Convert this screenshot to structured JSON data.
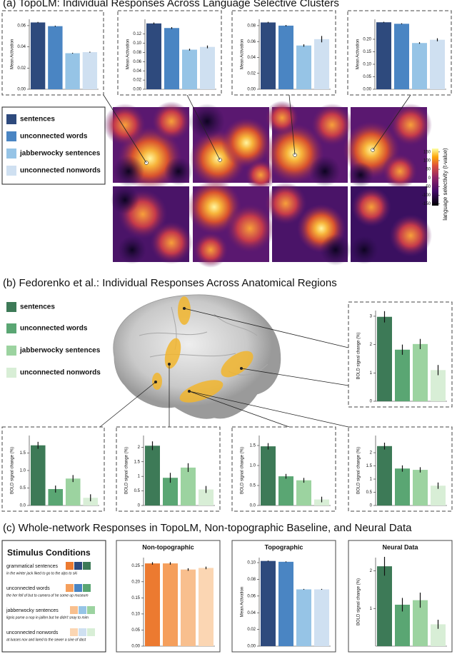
{
  "panels": [
    "(a) TopoLM: Individual Responses Across Language Selective Clusters",
    "(b) Fedorenko et al.: Individual Responses Across Anatomical Regions",
    "(c) Whole-network Responses in TopoLM, Non-topographic Baseline, and Neural Data"
  ],
  "legend_a": [
    "sentences",
    "unconnected words",
    "jabberwocky sentences",
    "unconnected nonwords"
  ],
  "legend_b": [
    "sentences",
    "unconnected words",
    "jabberwocky sentences",
    "unconnected nonwords"
  ],
  "stimulus_conditions": {
    "title": "Stimulus Conditions",
    "items": [
      {
        "label": "grammatical sentences",
        "example": "in the winter jack liked to go to the alps to ski"
      },
      {
        "label": "unconnected words",
        "example": "the her fell of but to camera of he some up museum"
      },
      {
        "label": "jabberwocky sentences",
        "example": "lignis porne a nop in jaifen but he didn't snay to mim"
      },
      {
        "label": "unconnected nonwords",
        "example": "at luases nox and lared to the sewer a sixe of dast"
      }
    ]
  },
  "chart_data": [
    {
      "type": "bar",
      "ylabel": "Mean Activation",
      "values": [
        0.063,
        0.0595,
        0.034,
        0.035
      ],
      "errors": [
        0.0005,
        0.0005,
        0.0004,
        0.0004
      ],
      "colors": [
        "#2e4a7d",
        "#4a85c3",
        "#96c4e6",
        "#cfe0f1"
      ],
      "ylim": [
        0,
        0.066
      ],
      "yticks": [
        {
          "value": 0,
          "label": "0.00"
        },
        0.02,
        0.04,
        0.06
      ]
    },
    {
      "type": "bar",
      "ylabel": "Mean Activation",
      "values": [
        0.143,
        0.133,
        0.086,
        0.092
      ],
      "errors": [
        0.002,
        0.002,
        0.002,
        0.003
      ],
      "colors": [
        "#2e4a7d",
        "#4a85c3",
        "#96c4e6",
        "#cfe0f1"
      ],
      "ylim": [
        0,
        0.152
      ],
      "yticks": [
        {
          "value": 0,
          "label": "0.00"
        },
        0.02,
        0.04,
        0.06,
        0.08,
        {
          "value": 0.1,
          "label": "0.10"
        },
        0.12
      ]
    },
    {
      "type": "bar",
      "ylabel": "Mean Activation",
      "values": [
        0.084,
        0.08,
        0.055,
        0.063
      ],
      "errors": [
        0.0008,
        0.0008,
        0.0015,
        0.004
      ],
      "colors": [
        "#2e4a7d",
        "#4a85c3",
        "#96c4e6",
        "#cfe0f1"
      ],
      "ylim": [
        0,
        0.088
      ],
      "yticks": [
        {
          "value": 0,
          "label": "0.00"
        },
        0.02,
        0.04,
        0.06,
        0.08
      ]
    },
    {
      "type": "bar",
      "ylabel": "Mean Activation",
      "values": [
        0.268,
        0.262,
        0.185,
        0.198
      ],
      "errors": [
        0.002,
        0.002,
        0.003,
        0.006
      ],
      "colors": [
        "#2e4a7d",
        "#4a85c3",
        "#96c4e6",
        "#cfe0f1"
      ],
      "ylim": [
        0,
        0.28
      ],
      "yticks": [
        {
          "value": 0,
          "label": "0.00"
        },
        0.05,
        {
          "value": 0.1,
          "label": "0.10"
        },
        0.15,
        {
          "value": 0.2,
          "label": "0.20"
        }
      ]
    },
    {
      "type": "colorbar",
      "label": "language selectivity (t-value)",
      "ylim": [
        -160,
        170
      ],
      "yticks": [
        150,
        100,
        50,
        0,
        -50,
        -100,
        -150
      ]
    },
    {
      "type": "bar",
      "ylabel": "BOLD signal change (%)",
      "values": [
        2.98,
        1.82,
        2.02,
        1.1
      ],
      "errors": [
        0.2,
        0.18,
        0.18,
        0.18
      ],
      "colors": [
        "#3d7a57",
        "#5aa673",
        "#9cd3a0",
        "#d8eed6"
      ],
      "ylim": [
        0,
        3.2
      ],
      "yticks": [
        0,
        1,
        2,
        3
      ]
    },
    {
      "type": "bar",
      "ylabel": "BOLD signal change (%)",
      "values": [
        1.72,
        0.47,
        0.77,
        0.22
      ],
      "errors": [
        0.1,
        0.1,
        0.1,
        0.1
      ],
      "colors": [
        "#3d7a57",
        "#5aa673",
        "#9cd3a0",
        "#d8eed6"
      ],
      "ylim": [
        0,
        2.0
      ],
      "yticks": [
        {
          "value": 0,
          "label": "0.0"
        },
        0.5,
        {
          "value": 1,
          "label": "1.0"
        },
        1.5
      ]
    },
    {
      "type": "bar",
      "ylabel": "BOLD signal change (%)",
      "values": [
        2.05,
        0.95,
        1.3,
        0.55
      ],
      "errors": [
        0.15,
        0.17,
        0.15,
        0.12
      ],
      "colors": [
        "#3d7a57",
        "#5aa673",
        "#9cd3a0",
        "#d8eed6"
      ],
      "ylim": [
        0,
        2.4
      ],
      "yticks": [
        0,
        0.5,
        1,
        1.5,
        2
      ]
    },
    {
      "type": "bar",
      "ylabel": "BOLD signal change (%)",
      "values": [
        1.48,
        0.73,
        0.63,
        0.15
      ],
      "errors": [
        0.08,
        0.06,
        0.06,
        0.07
      ],
      "colors": [
        "#3d7a57",
        "#5aa673",
        "#9cd3a0",
        "#d8eed6"
      ],
      "ylim": [
        0,
        1.75
      ],
      "yticks": [
        {
          "value": 0,
          "label": "0.0"
        },
        0.5,
        {
          "value": 1,
          "label": "1.0"
        },
        1.5
      ]
    },
    {
      "type": "bar",
      "ylabel": "BOLD signal change (%)",
      "values": [
        2.25,
        1.4,
        1.35,
        0.75
      ],
      "errors": [
        0.13,
        0.12,
        0.1,
        0.12
      ],
      "colors": [
        "#3d7a57",
        "#5aa673",
        "#9cd3a0",
        "#d8eed6"
      ],
      "ylim": [
        0,
        2.65
      ],
      "yticks": [
        0,
        0.5,
        1,
        1.5,
        2
      ]
    },
    {
      "type": "bar",
      "title": "Non-topographic",
      "title_color": "#ec7a30",
      "values": [
        0.257,
        0.257,
        0.238,
        0.243
      ],
      "errors": [
        0.004,
        0.004,
        0.004,
        0.004
      ],
      "colors": [
        "#ec7a30",
        "#f59f5c",
        "#f8bf8e",
        "#fbd6b3"
      ],
      "ylim": [
        0,
        0.275
      ],
      "yticks": [
        {
          "value": 0,
          "label": "0.00"
        },
        0.05,
        {
          "value": 0.1,
          "label": "0.10"
        },
        0.15,
        {
          "value": 0.2,
          "label": "0.20"
        },
        0.25
      ]
    },
    {
      "type": "bar",
      "title": "Topographic",
      "title_color": "#2e4a7d",
      "ylabel": "Mean Activation",
      "values": [
        0.102,
        0.101,
        0.068,
        0.068
      ],
      "errors": [
        0.0005,
        0.0005,
        0.0005,
        0.0005
      ],
      "colors": [
        "#2e4a7d",
        "#4a85c3",
        "#96c4e6",
        "#cfe0f1"
      ],
      "ylim": [
        0,
        0.106
      ],
      "yticks": [
        {
          "value": 0,
          "label": "0.00"
        },
        0.02,
        0.04,
        0.06,
        0.08,
        {
          "value": 0.1,
          "label": "0.10"
        }
      ]
    },
    {
      "type": "bar",
      "title": "Neural Data",
      "title_color": "#3d7a57",
      "ylabel": "BOLD signal change (%)",
      "values": [
        2.12,
        1.1,
        1.22,
        0.58
      ],
      "errors": [
        0.25,
        0.18,
        0.2,
        0.12
      ],
      "colors": [
        "#3d7a57",
        "#5aa673",
        "#9cd3a0",
        "#d8eed6"
      ],
      "ylim": [
        0,
        2.35
      ],
      "yticks": [
        1,
        2
      ]
    }
  ]
}
